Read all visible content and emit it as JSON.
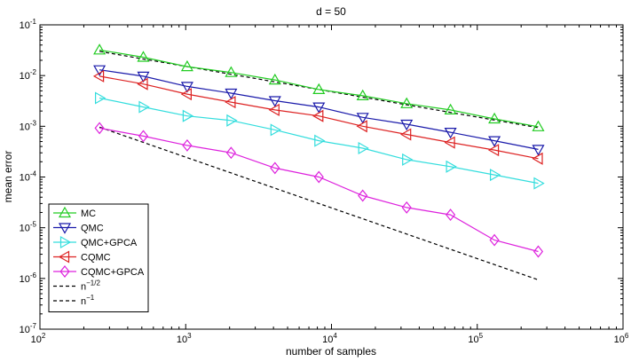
{
  "chart_data": {
    "type": "line",
    "title": "d = 50",
    "xlabel": "number of samples",
    "ylabel": "mean error",
    "xscale": "log",
    "yscale": "log",
    "xlim": [
      100,
      1000000
    ],
    "ylim": [
      1e-07,
      0.1
    ],
    "x_ticks": [
      {
        "value": 100,
        "base": "10",
        "exp": "2"
      },
      {
        "value": 1000,
        "base": "10",
        "exp": "3"
      },
      {
        "value": 10000,
        "base": "10",
        "exp": "4"
      },
      {
        "value": 100000,
        "base": "10",
        "exp": "5"
      },
      {
        "value": 1000000,
        "base": "10",
        "exp": "6"
      }
    ],
    "y_ticks": [
      {
        "value": 1e-07,
        "base": "10",
        "exp": "-7"
      },
      {
        "value": 1e-06,
        "base": "10",
        "exp": "-6"
      },
      {
        "value": 1e-05,
        "base": "10",
        "exp": "-5"
      },
      {
        "value": 0.0001,
        "base": "10",
        "exp": "-4"
      },
      {
        "value": 0.001,
        "base": "10",
        "exp": "-3"
      },
      {
        "value": 0.01,
        "base": "10",
        "exp": "-2"
      },
      {
        "value": 0.1,
        "base": "10",
        "exp": "-1"
      }
    ],
    "grid": false,
    "legend_position": "bottom-left",
    "x": [
      256,
      512,
      1024,
      2048,
      4096,
      8192,
      16384,
      32768,
      65536,
      131072,
      262144
    ],
    "series": [
      {
        "name": "MC",
        "marker": "triangle-up",
        "color": "#22cc22",
        "values": [
          0.032,
          0.023,
          0.015,
          0.0115,
          0.0082,
          0.0053,
          0.004,
          0.0028,
          0.0021,
          0.0014,
          0.00098
        ]
      },
      {
        "name": "QMC",
        "marker": "triangle-down",
        "color": "#1a1aaa",
        "values": [
          0.013,
          0.0097,
          0.0061,
          0.0045,
          0.0032,
          0.0024,
          0.0015,
          0.0011,
          0.00076,
          0.00052,
          0.00035
        ]
      },
      {
        "name": "QMC+GPCA",
        "marker": "triangle-right",
        "color": "#33dddd",
        "values": [
          0.0036,
          0.0024,
          0.0016,
          0.0013,
          0.00085,
          0.00052,
          0.00037,
          0.00022,
          0.00016,
          0.00011,
          7.5e-05
        ]
      },
      {
        "name": "CQMC",
        "marker": "triangle-left",
        "color": "#dd2222",
        "values": [
          0.0097,
          0.0068,
          0.0043,
          0.003,
          0.0021,
          0.0016,
          0.001,
          0.00069,
          0.00048,
          0.00034,
          0.00023
        ]
      },
      {
        "name": "CQMC+GPCA",
        "marker": "diamond",
        "color": "#dd22dd",
        "values": [
          0.00092,
          0.00064,
          0.00042,
          0.0003,
          0.00015,
          0.0001,
          4.3e-05,
          2.5e-05,
          1.8e-05,
          5.7e-06,
          3.4e-06
        ]
      }
    ],
    "reference_lines": [
      {
        "label_base": "n",
        "label_exp": "−1/2",
        "style": "dashed",
        "color": "#000000",
        "x": [
          256,
          262144
        ],
        "values": [
          0.03,
          0.00094
        ]
      },
      {
        "label_base": "n",
        "label_exp": "−1",
        "style": "dashed",
        "color": "#000000",
        "x": [
          256,
          262144
        ],
        "values": [
          0.00096,
          9.4e-07
        ]
      }
    ]
  }
}
